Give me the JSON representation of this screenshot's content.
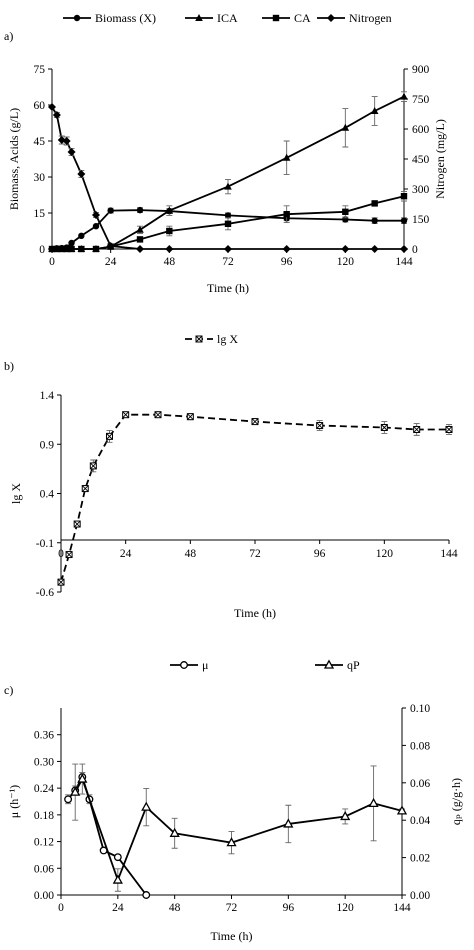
{
  "chart_data": [
    {
      "panel_label": "a)",
      "type": "line",
      "xlabel": "Time (h)",
      "ylabel": "Biomass, Acids (g/L)",
      "y2label": "Nitrogen (mg/L)",
      "xlim": [
        0,
        144
      ],
      "ylim": [
        0,
        75
      ],
      "y2lim": [
        0,
        900
      ],
      "xticks": [
        0,
        24,
        48,
        72,
        96,
        120,
        144
      ],
      "yticks": [
        0,
        15,
        30,
        45,
        60,
        75
      ],
      "y2ticks": [
        0,
        150,
        300,
        450,
        600,
        750,
        900
      ],
      "legend_position": "top",
      "series": [
        {
          "name": "Biomass (X)",
          "marker": "circle",
          "axis": "left",
          "x": [
            0,
            2,
            4,
            6,
            8,
            12,
            18,
            24,
            36,
            48,
            72,
            96,
            120,
            132,
            144
          ],
          "y": [
            0,
            0.3,
            0.4,
            0.6,
            2.5,
            5.5,
            9.5,
            16,
            16.2,
            15.8,
            14,
            12.8,
            12.3,
            11.8,
            11.8
          ],
          "err": [
            0,
            0,
            0,
            0,
            0,
            0,
            0,
            1,
            1,
            1,
            1,
            1,
            1,
            1.2,
            1.2
          ]
        },
        {
          "name": "ICA",
          "marker": "triangle",
          "axis": "left",
          "x": [
            0,
            2,
            4,
            6,
            8,
            12,
            18,
            24,
            36,
            48,
            72,
            96,
            120,
            132,
            144
          ],
          "y": [
            0,
            0,
            0,
            0,
            0,
            0,
            0,
            1,
            8,
            16,
            26,
            38,
            50.5,
            57.5,
            63.5
          ],
          "err": [
            0,
            0,
            0,
            0,
            0,
            0,
            0,
            0,
            1.5,
            2,
            3,
            7,
            8,
            6,
            2
          ]
        },
        {
          "name": "CA",
          "marker": "square",
          "axis": "left",
          "x": [
            0,
            2,
            4,
            6,
            8,
            12,
            18,
            24,
            36,
            48,
            72,
            96,
            120,
            132,
            144
          ],
          "y": [
            0,
            0,
            0,
            0,
            0,
            0,
            0,
            1,
            4,
            7.5,
            10.5,
            14.5,
            15.5,
            19,
            22
          ],
          "err": [
            0,
            0,
            0,
            0,
            0,
            0,
            0,
            0,
            1,
            2,
            2.5,
            3.5,
            2.5,
            1,
            2
          ]
        },
        {
          "name": "Nitrogen",
          "marker": "diamond",
          "axis": "right",
          "x": [
            0,
            2,
            4,
            6,
            8,
            12,
            18,
            24,
            36,
            48,
            72,
            96,
            120,
            132,
            144
          ],
          "y": [
            710,
            670,
            545,
            540,
            485,
            375,
            170,
            15,
            0,
            0,
            0,
            0,
            0,
            0,
            0
          ],
          "err": [
            0,
            12,
            20,
            20,
            18,
            18,
            12,
            5,
            0,
            0,
            0,
            0,
            0,
            0,
            0
          ]
        }
      ]
    },
    {
      "panel_label": "b)",
      "type": "line",
      "xlabel": "Time (h)",
      "ylabel": "lg X",
      "xlim": [
        0,
        144
      ],
      "ylim": [
        -0.6,
        1.4
      ],
      "xticks": [
        0,
        24,
        48,
        72,
        96,
        120,
        144
      ],
      "yticks": [
        -0.6,
        -0.1,
        0.4,
        0.9,
        1.4
      ],
      "legend_position": "top",
      "series": [
        {
          "name": "lg X",
          "marker": "crossed-square",
          "style": "dashed",
          "x": [
            0,
            3,
            6,
            9,
            12,
            18,
            24,
            36,
            48,
            72,
            96,
            120,
            132,
            144
          ],
          "y": [
            -0.5,
            -0.22,
            0.09,
            0.45,
            0.68,
            0.98,
            1.2,
            1.2,
            1.18,
            1.13,
            1.09,
            1.07,
            1.05,
            1.05
          ],
          "err": [
            0.02,
            0.02,
            0.02,
            0.03,
            0.06,
            0.06,
            0.01,
            0.02,
            0.03,
            0.03,
            0.05,
            0.06,
            0.06,
            0.05
          ]
        }
      ]
    },
    {
      "panel_label": "c)",
      "type": "line",
      "xlabel": "Time (h)",
      "ylabel": "μ (h⁻¹)",
      "y2label": "qₚ (g/g·h)",
      "xlim": [
        0,
        144
      ],
      "ylim": [
        0,
        0.42
      ],
      "y2lim": [
        0,
        0.1
      ],
      "xticks": [
        0,
        24,
        48,
        72,
        96,
        120,
        144
      ],
      "yticks": [
        "0.00",
        "0.06",
        "0.12",
        "0.18",
        "0.24",
        "0.30",
        "0.36"
      ],
      "y2ticks": [
        "0.00",
        "0.02",
        "0.04",
        "0.06",
        "0.08",
        "0.10"
      ],
      "legend_position": "top",
      "series": [
        {
          "name": "μ",
          "marker": "open-circle",
          "axis": "left",
          "x": [
            3,
            6,
            9,
            12,
            18,
            24,
            36
          ],
          "y": [
            0.215,
            0.235,
            0.265,
            0.215,
            0.1,
            0.085,
            0
          ],
          "err": [
            0.01,
            0.01,
            0.01,
            0.01,
            0.005,
            0.005,
            0
          ]
        },
        {
          "name": "qP",
          "marker": "open-triangle",
          "axis": "right",
          "x": [
            6,
            9,
            24,
            36,
            48,
            72,
            96,
            120,
            132,
            144
          ],
          "y": [
            0.055,
            0.062,
            0.008,
            0.047,
            0.033,
            0.028,
            0.038,
            0.042,
            0.049,
            0.045
          ],
          "err": [
            0.015,
            0.008,
            0.006,
            0.01,
            0.008,
            0.006,
            0.01,
            0.004,
            0.02,
            0.001
          ]
        }
      ]
    }
  ]
}
